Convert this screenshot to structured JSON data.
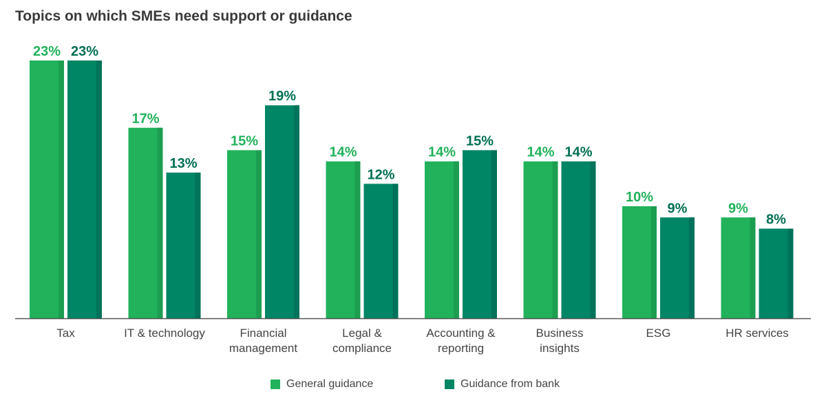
{
  "chart_data": {
    "type": "bar",
    "title": "Topics on which SMEs need support or guidance",
    "categories": [
      [
        "Tax"
      ],
      [
        "IT & technology"
      ],
      [
        "Financial",
        "management"
      ],
      [
        "Legal &",
        "compliance"
      ],
      [
        "Accounting &",
        "reporting"
      ],
      [
        "Business",
        "insights"
      ],
      [
        "ESG"
      ],
      [
        "HR services"
      ]
    ],
    "series": [
      {
        "name": "General guidance",
        "color": "#21b25b",
        "values": [
          23,
          17,
          15,
          14,
          14,
          14,
          10,
          9
        ],
        "labels": [
          "23%",
          "17%",
          "15%",
          "14%",
          "14%",
          "14%",
          "10%",
          "9%"
        ]
      },
      {
        "name": "Guidance from bank",
        "color": "#008565",
        "values": [
          23,
          13,
          19,
          12,
          15,
          14,
          9,
          8
        ],
        "labels": [
          "23%",
          "13%",
          "19%",
          "12%",
          "15%",
          "14%",
          "9%",
          "8%"
        ]
      }
    ],
    "ylim": [
      0,
      23
    ],
    "grid": false,
    "legend": "bottom-center"
  }
}
